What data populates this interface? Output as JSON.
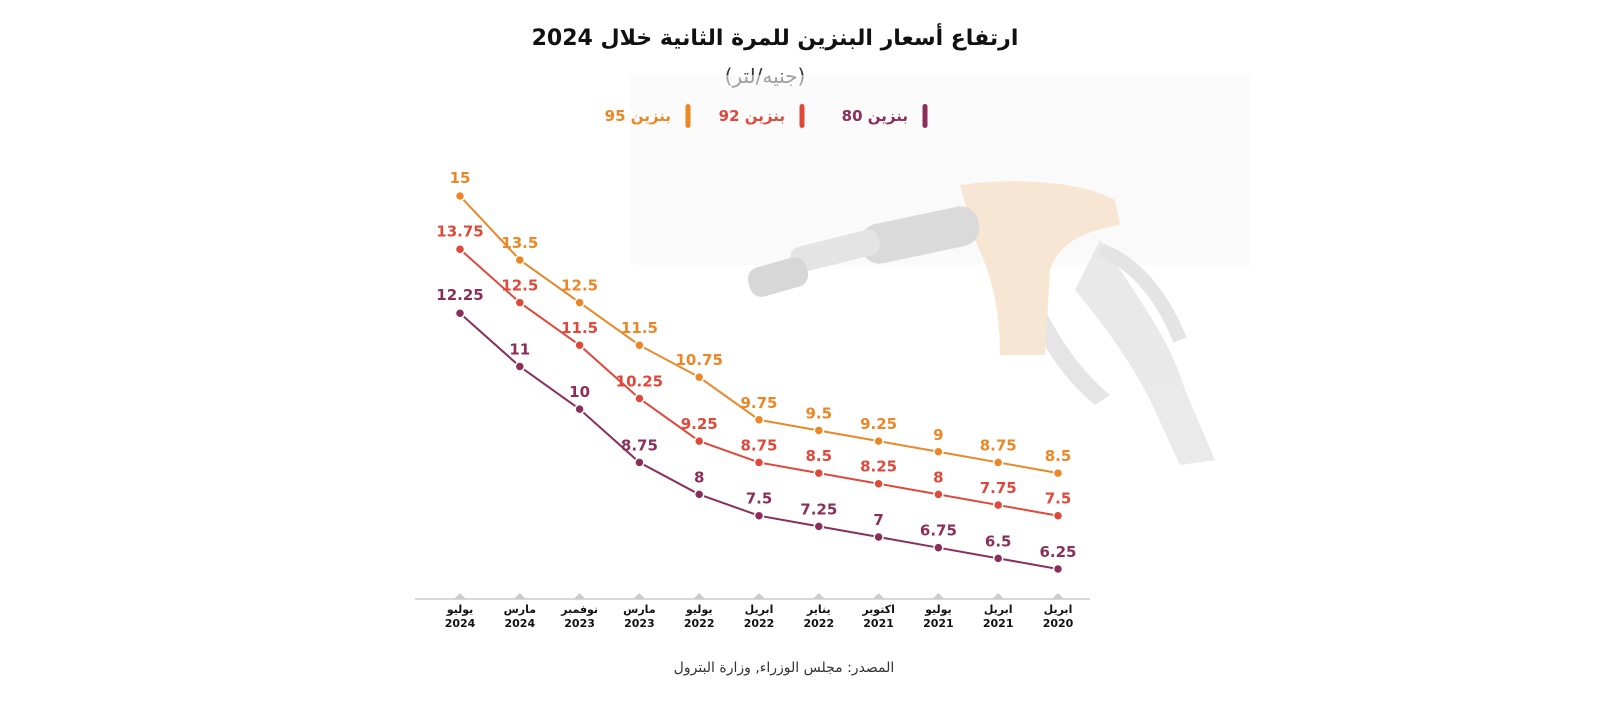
{
  "header": {
    "title": "ارتفاع أسعار البنزين للمرة الثانية خلال 2024",
    "subtitle": "(جنيه/لتر)"
  },
  "footer": {
    "source": "المصدر: مجلس الوزراء, وزارة البترول"
  },
  "legend": {
    "placement": "top-center",
    "items": [
      {
        "label": "بنزين 80",
        "color": "#8b2e5a"
      },
      {
        "label": "بنزين 92",
        "color": "#e0483a"
      },
      {
        "label": "بنزين 95",
        "color": "#ec8726"
      }
    ]
  },
  "chart_data": {
    "type": "line",
    "categories": [
      [
        "يوليو",
        "2024"
      ],
      [
        "مارس",
        "2024"
      ],
      [
        "نوفمبر",
        "2023"
      ],
      [
        "مارس",
        "2023"
      ],
      [
        "يوليو",
        "2022"
      ],
      [
        "ابريل",
        "2022"
      ],
      [
        "يناير",
        "2022"
      ],
      [
        "اكتوبر",
        "2021"
      ],
      [
        "يوليو",
        "2021"
      ],
      [
        "ابريل",
        "2021"
      ],
      [
        "ابريل",
        "2020"
      ]
    ],
    "series": [
      {
        "name": "بنزين 95",
        "color": "#ec8726",
        "values": [
          15,
          13.5,
          12.5,
          11.5,
          10.75,
          9.75,
          9.5,
          9.25,
          9,
          8.75,
          8.5
        ]
      },
      {
        "name": "بنزين 92",
        "color": "#e0483a",
        "values": [
          13.75,
          12.5,
          11.5,
          10.25,
          9.25,
          8.75,
          8.5,
          8.25,
          8,
          7.75,
          7.5
        ]
      },
      {
        "name": "بنزين 80",
        "color": "#8b2e5a",
        "values": [
          12.25,
          11,
          10,
          8.75,
          8,
          7.5,
          7.25,
          7,
          6.75,
          6.5,
          6.25
        ]
      }
    ],
    "ylim": [
      6.25,
      15
    ],
    "grid": false,
    "xlabel": "",
    "ylabel": ""
  }
}
